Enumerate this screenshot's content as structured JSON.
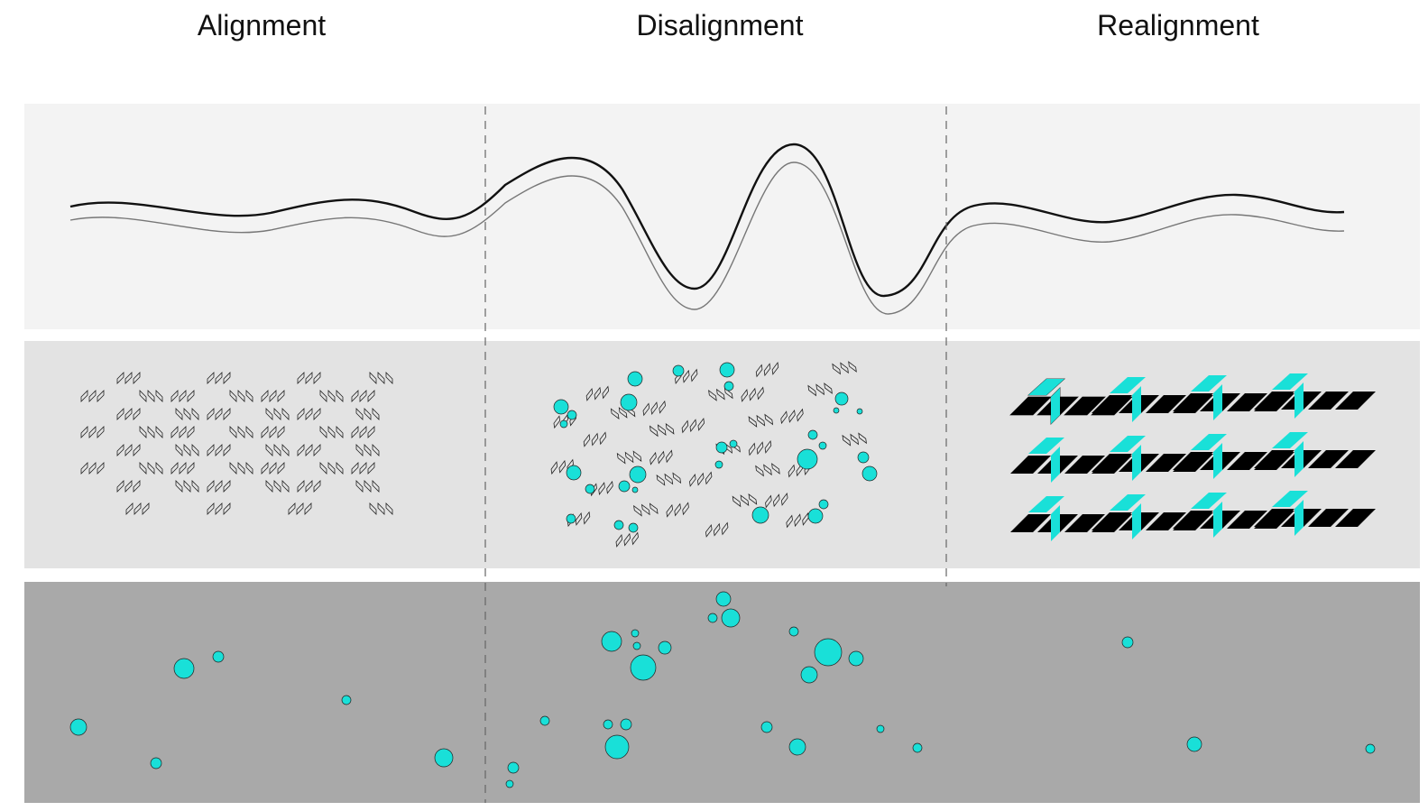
{
  "columns": [
    {
      "title": "Alignment"
    },
    {
      "title": "Disalignment"
    },
    {
      "title": "Realignment"
    }
  ],
  "colors": {
    "band_top": "#f3f3f3",
    "band_mid": "#e3e3e3",
    "band_bottom": "#a9a9a9",
    "dot_fill": "#19e0d8",
    "stroke": "#222222",
    "divider": "#666666"
  },
  "icons": {
    "wave": "wave-line",
    "chevron_pattern": "chevron-lattice",
    "dot": "cyan-circle"
  }
}
